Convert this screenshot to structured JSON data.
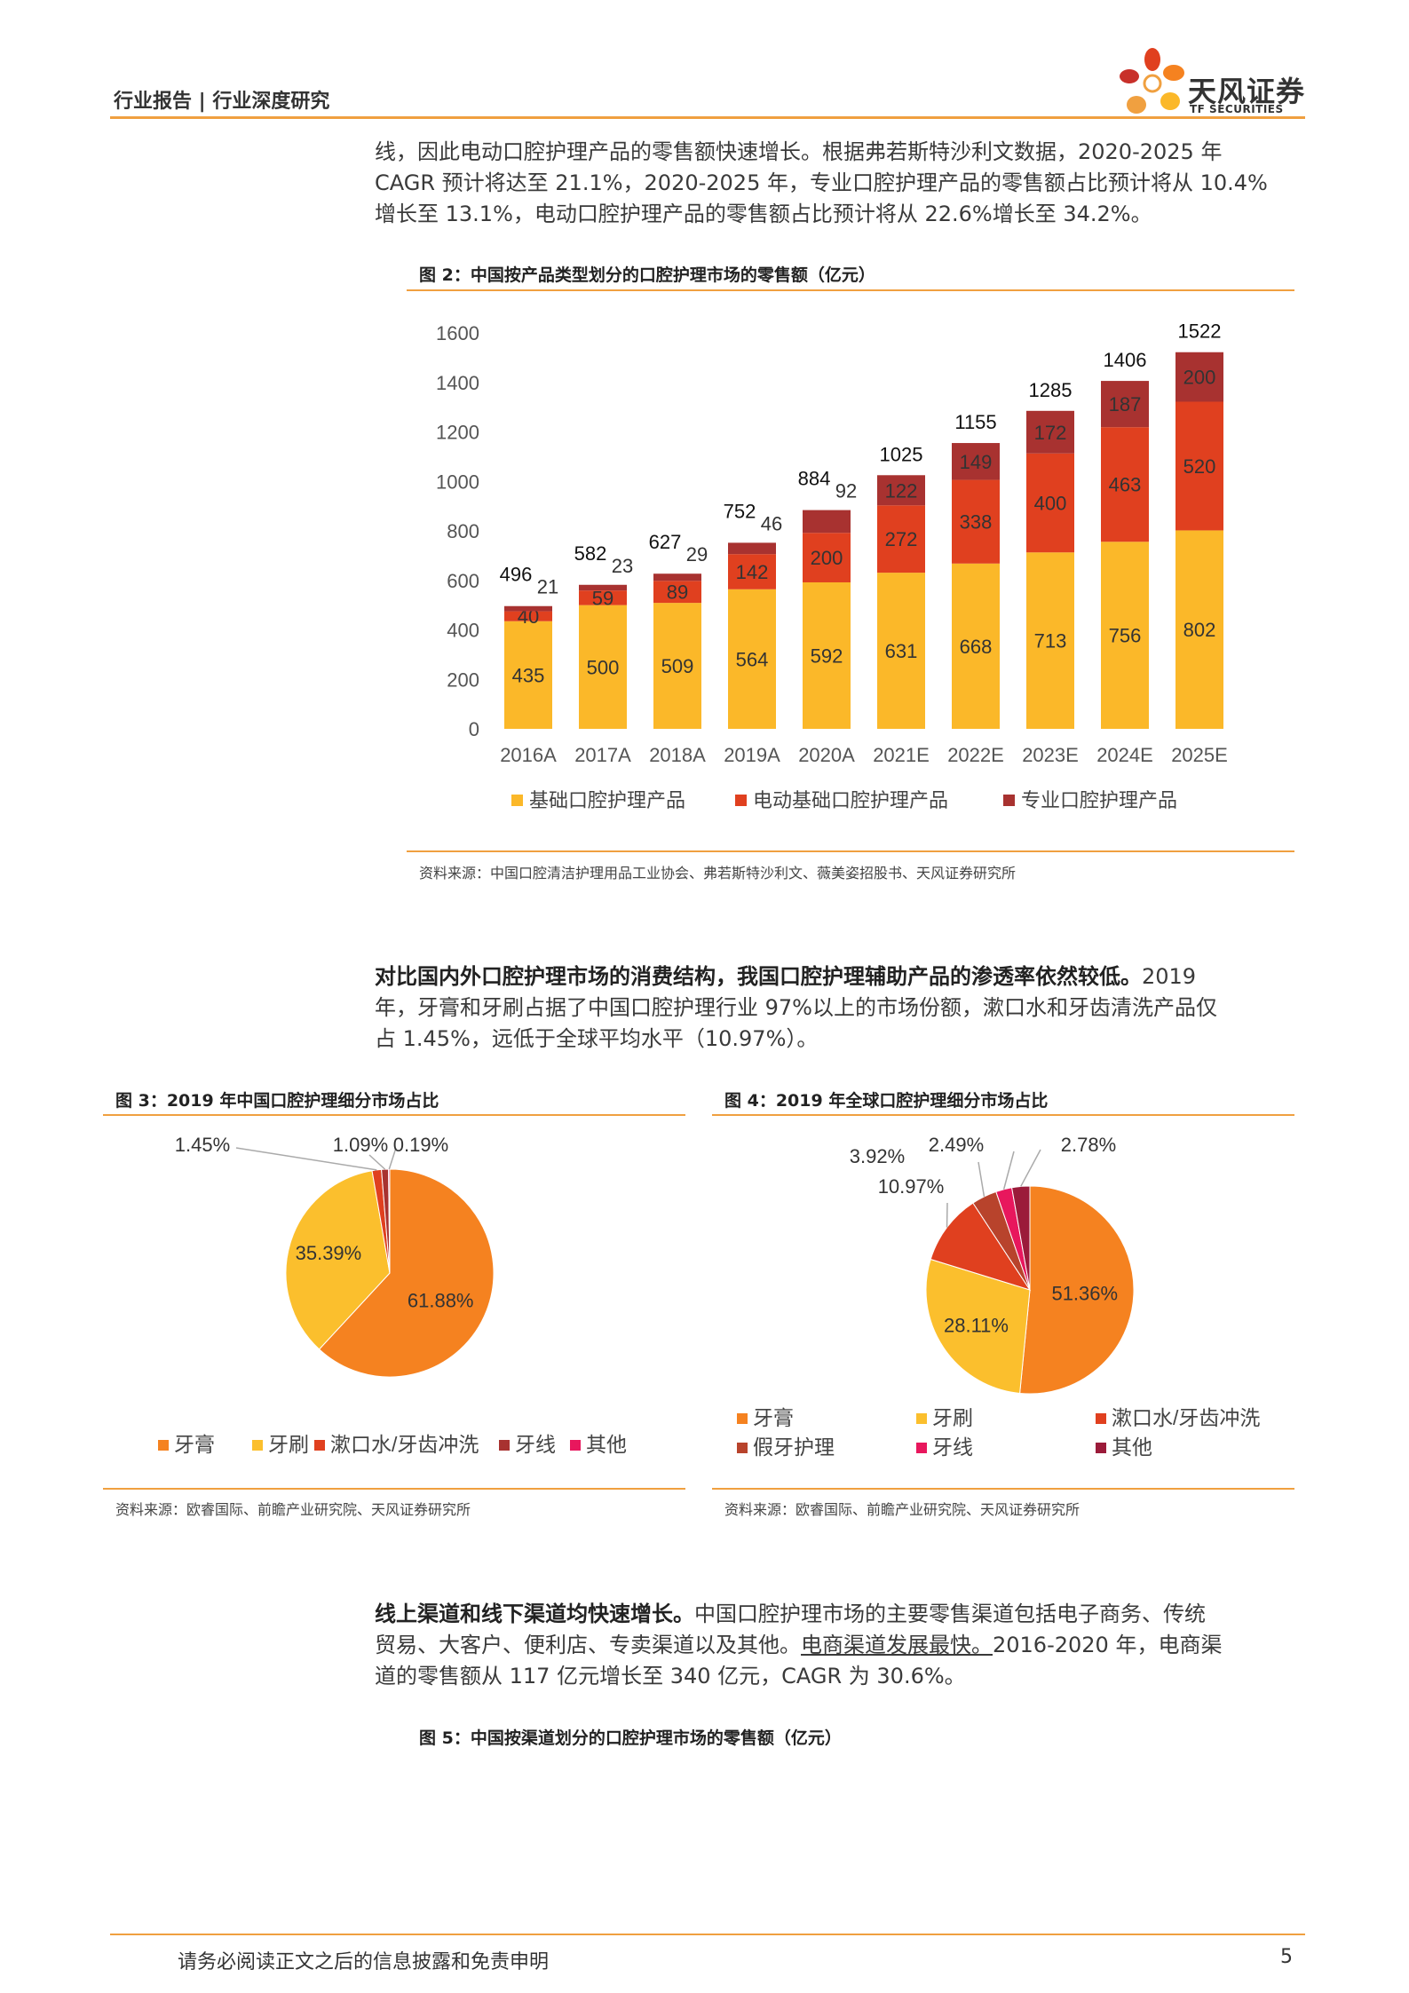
{
  "header": {
    "title": "行业报告 | 行业深度研究",
    "logo_text": "天风证券",
    "logo_sub": "TF SECURITIES"
  },
  "colors": {
    "orange_rule": "#f0a040",
    "basic": "#fbb829",
    "electric": "#e0401f",
    "professional": "#a83230",
    "toothpaste": "#f58220",
    "toothbrush": "#fbbf2d",
    "mouthwash": "#e0401f",
    "floss_cn": "#a83230",
    "other_cn": "#e8175d",
    "denture": "#b8432c",
    "floss_global": "#e8175d",
    "other_global": "#9b1b3a"
  },
  "paragraph1": {
    "line1": "线，因此电动口腔护理产品的零售额快速增长。根据弗若斯特沙利文数据，2020-2025 年",
    "line2": "CAGR 预计将达至 21.1%，2020-2025 年，专业口腔护理产品的零售额占比预计将从 10.4%",
    "line3": "增长至 13.1%，电动口腔护理产品的零售额占比预计将从 22.6%增长至 34.2%。"
  },
  "figure2": {
    "title": "图 2：中国按产品类型划分的口腔护理市场的零售额（亿元）",
    "source": "资料来源：中国口腔清洁护理用品工业协会、弗若斯特沙利文、薇美姿招股书、天风证券研究所"
  },
  "chart_data": [
    {
      "type": "bar",
      "stacked": true,
      "categories": [
        "2016A",
        "2017A",
        "2018A",
        "2019A",
        "2020A",
        "2021E",
        "2022E",
        "2023E",
        "2024E",
        "2025E"
      ],
      "series": [
        {
          "name": "基础口腔护理产品",
          "values": [
            435,
            500,
            509,
            564,
            592,
            631,
            668,
            713,
            756,
            802
          ]
        },
        {
          "name": "电动基础口腔护理产品",
          "values": [
            40,
            59,
            89,
            142,
            200,
            272,
            338,
            400,
            463,
            520
          ]
        },
        {
          "name": "专业口腔护理产品",
          "values": [
            21,
            23,
            29,
            46,
            92,
            122,
            149,
            172,
            187,
            200
          ]
        }
      ],
      "totals": [
        496,
        582,
        627,
        752,
        884,
        1025,
        1155,
        1285,
        1406,
        1522
      ],
      "yticks": [
        "0",
        "200",
        "400",
        "600",
        "800",
        "1000",
        "1200",
        "1400",
        "1600"
      ],
      "ylim": [
        0,
        1600
      ],
      "legend": "bottom"
    },
    {
      "type": "pie",
      "labels": [
        "牙膏",
        "牙刷",
        "漱口水/牙齿冲洗",
        "牙线",
        "其他"
      ],
      "values": [
        61.88,
        35.39,
        1.45,
        1.09,
        0.19
      ],
      "value_labels": [
        "61.88%",
        "35.39%",
        "1.45%",
        "1.09%",
        "0.19%"
      ],
      "legend": "bottom"
    },
    {
      "type": "pie",
      "labels": [
        "牙膏",
        "牙刷",
        "漱口水/牙齿冲洗",
        "假牙护理",
        "牙线",
        "其他"
      ],
      "values": [
        51.36,
        28.11,
        10.97,
        3.92,
        2.49,
        2.78
      ],
      "value_labels": [
        "51.36%",
        "28.11%",
        "10.97%",
        "3.92%",
        "2.49%",
        "2.78%"
      ],
      "legend": "bottom"
    }
  ],
  "paragraph2": {
    "bold": "对比国内外口腔护理市场的消费结构，我国口腔护理辅助产品的渗透率依然较低。",
    "line1_rest": "2019",
    "line2": "年，牙膏和牙刷占据了中国口腔护理行业 97%以上的市场份额，漱口水和牙齿清洗产品仅",
    "line3": "占 1.45%，远低于全球平均水平（10.97%）。"
  },
  "figure3": {
    "title": "图 3：2019 年中国口腔护理细分市场占比",
    "source": "资料来源：欧睿国际、前瞻产业研究院、天风证券研究所"
  },
  "figure4": {
    "title": "图 4：2019 年全球口腔护理细分市场占比",
    "source": "资料来源：欧睿国际、前瞻产业研究院、天风证券研究所"
  },
  "paragraph3": {
    "bold": "线上渠道和线下渠道均快速增长。",
    "line1_rest": "中国口腔护理市场的主要零售渠道包括电子商务、传统",
    "line2_a": "贸易、大客户、便利店、专卖渠道以及其他。",
    "line2_u": "电商渠道发展最快。",
    "line2_b": "2016-2020 年，电商渠",
    "line3": "道的零售额从 117 亿元增长至 340 亿元，CAGR 为 30.6%。"
  },
  "figure5": {
    "title": "图 5：中国按渠道划分的口腔护理市场的零售额（亿元）"
  },
  "footer": {
    "disclaimer": "请务必阅读正文之后的信息披露和免责申明",
    "page": "5"
  }
}
